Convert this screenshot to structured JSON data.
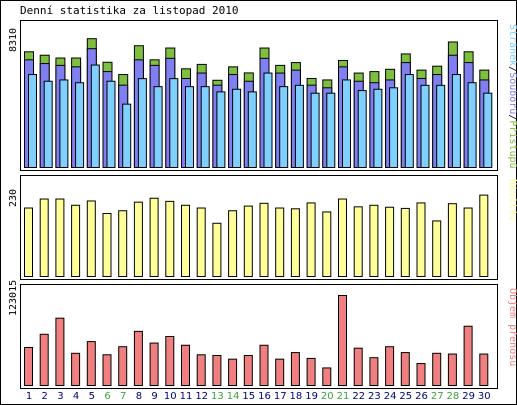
{
  "title": "Denní statistika za listopad 2010",
  "colors": {
    "hits": "#7fbf3f",
    "files": "#7f7fef",
    "pages": "#7fcfff",
    "visits": "#ffff99",
    "kbytes": "#f08080",
    "weekend_label": "#3f9f3f",
    "day_label": "#000080",
    "panel_border": "#000000",
    "bar_border": "#000000"
  },
  "chart_data": [
    {
      "type": "bar",
      "panel": "requests",
      "ylabel_max": "8310",
      "ymax": 8310,
      "legend": [
        {
          "text": "Stránek",
          "color_key": "pages"
        },
        {
          "text": "/",
          "color_key": "sep"
        },
        {
          "text": "Souborů",
          "color_key": "files"
        },
        {
          "text": "/",
          "color_key": "sep"
        },
        {
          "text": "Přístupů",
          "color_key": "hits"
        }
      ],
      "categories": [
        "1",
        "2",
        "3",
        "4",
        "5",
        "6",
        "7",
        "8",
        "9",
        "10",
        "11",
        "12",
        "13",
        "14",
        "15",
        "16",
        "17",
        "18",
        "19",
        "20",
        "21",
        "22",
        "23",
        "24",
        "25",
        "26",
        "27",
        "28",
        "29",
        "30"
      ],
      "series": [
        {
          "name": "Přístupů",
          "values": [
            7070,
            6860,
            6690,
            6690,
            7870,
            6430,
            5680,
            7440,
            6580,
            7300,
            6030,
            6300,
            5330,
            6150,
            5780,
            7300,
            6240,
            6410,
            5440,
            5350,
            6540,
            5770,
            5860,
            6000,
            6940,
            5950,
            6190,
            7670,
            7070,
            5950
          ]
        },
        {
          "name": "Souborů",
          "values": [
            6580,
            6350,
            6240,
            6150,
            7260,
            5860,
            5030,
            6580,
            6240,
            6670,
            5440,
            5770,
            5030,
            5680,
            5270,
            6670,
            5770,
            5950,
            5030,
            4870,
            6150,
            5270,
            5180,
            5350,
            6410,
            5440,
            5680,
            6860,
            6410,
            5350
          ]
        },
        {
          "name": "Stránek",
          "values": [
            5680,
            5270,
            5350,
            5180,
            6260,
            5270,
            3870,
            5430,
            4940,
            5430,
            4940,
            4940,
            4620,
            4780,
            4620,
            5770,
            4940,
            5020,
            4540,
            4540,
            5350,
            4700,
            4780,
            4870,
            5680,
            5020,
            5020,
            5680,
            5180,
            4540
          ]
        }
      ],
      "weekend_days": [
        "6",
        "7",
        "13",
        "14",
        "20",
        "21",
        "27",
        "28"
      ]
    },
    {
      "type": "bar",
      "panel": "visits",
      "ylabel_max": "230",
      "ymax": 230,
      "legend": [
        {
          "text": "Návštěv",
          "color_key": "visits"
        }
      ],
      "categories": [
        "1",
        "2",
        "3",
        "4",
        "5",
        "6",
        "7",
        "8",
        "9",
        "10",
        "11",
        "12",
        "13",
        "14",
        "15",
        "16",
        "17",
        "18",
        "19",
        "20",
        "21",
        "22",
        "23",
        "24",
        "25",
        "26",
        "27",
        "28",
        "29",
        "30"
      ],
      "series": [
        {
          "name": "Návštěv",
          "values": [
            175,
            198,
            198,
            182,
            193,
            161,
            168,
            190,
            200,
            192,
            182,
            175,
            136,
            168,
            180,
            187,
            175,
            173,
            188,
            165,
            198,
            178,
            182,
            177,
            174,
            188,
            142,
            186,
            175,
            208
          ]
        }
      ]
    },
    {
      "type": "bar",
      "panel": "kbytes",
      "ylabel_max": "123015",
      "ymax": 123015,
      "legend": [
        {
          "text": "Objem přenosu",
          "color_key": "kbytes"
        }
      ],
      "categories": [
        "1",
        "2",
        "3",
        "4",
        "5",
        "6",
        "7",
        "8",
        "9",
        "10",
        "11",
        "12",
        "13",
        "14",
        "15",
        "16",
        "17",
        "18",
        "19",
        "20",
        "21",
        "22",
        "23",
        "24",
        "25",
        "26",
        "27",
        "28",
        "29",
        "30"
      ],
      "series": [
        {
          "name": "Objem přenosu",
          "values": [
            52000,
            70000,
            92000,
            44000,
            60000,
            42000,
            53000,
            74000,
            58000,
            67000,
            55000,
            42000,
            41000,
            36000,
            41000,
            55000,
            36000,
            45000,
            37000,
            24000,
            123015,
            51000,
            38000,
            53000,
            45000,
            30000,
            44000,
            43000,
            81000,
            43000
          ]
        }
      ]
    }
  ]
}
